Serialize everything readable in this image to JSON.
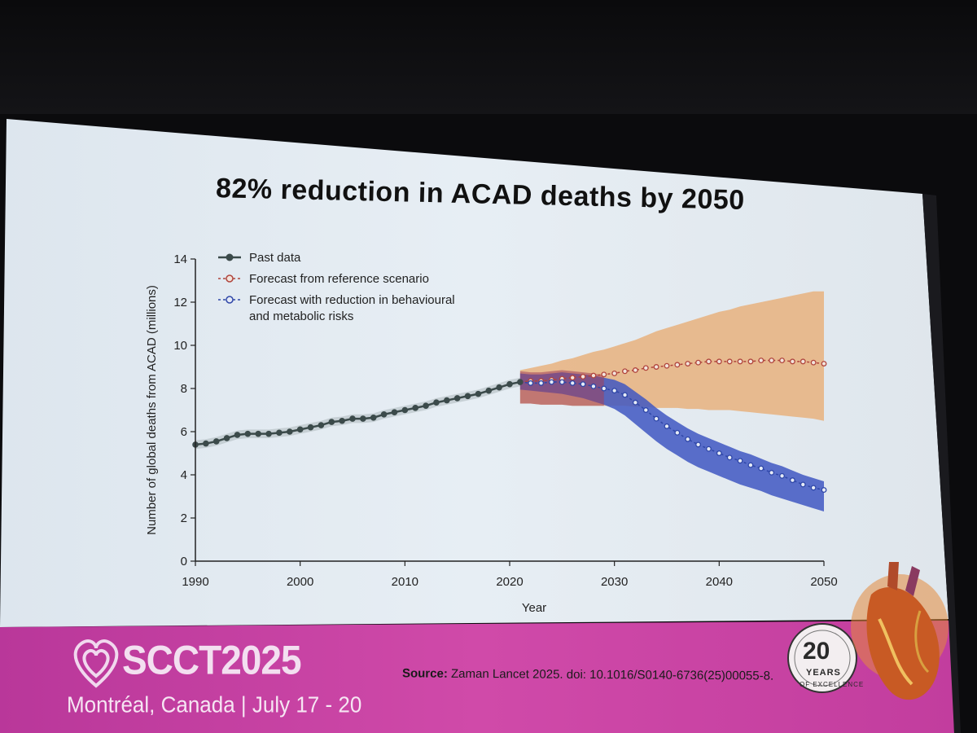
{
  "slide": {
    "title": "82% reduction in ACAD deaths by 2050",
    "source_label": "Source:",
    "source_text": "Zaman Lancet 2025. doi: 10.1016/S0140-6736(25)00055-8."
  },
  "banner": {
    "event": "SCCT2025",
    "location": "Montréal, Canada | July 17 - 20",
    "badge_number": "20",
    "badge_years": "YEARS",
    "badge_excellence": "OF EXCELLENCE"
  },
  "colors": {
    "past": "#3b4a4a",
    "reference": "#b0443c",
    "reduction": "#2f47a8",
    "reference_band": "#e8b27e",
    "reduction_band": "#3f57c2",
    "banner": "#c63aa0"
  },
  "chart_data": {
    "type": "line",
    "title": "",
    "xlabel": "Year",
    "ylabel": "Number of global deaths from ACAD (millions)",
    "xlim": [
      1990,
      2050
    ],
    "ylim": [
      0,
      14
    ],
    "x_ticks": [
      1990,
      2000,
      2010,
      2020,
      2030,
      2040,
      2050
    ],
    "y_ticks": [
      0,
      2,
      4,
      6,
      8,
      10,
      12,
      14
    ],
    "legend_position": "top-left",
    "grid": false,
    "series": [
      {
        "name": "Past data",
        "x": [
          1990,
          1991,
          1992,
          1993,
          1994,
          1995,
          1996,
          1997,
          1998,
          1999,
          2000,
          2001,
          2002,
          2003,
          2004,
          2005,
          2006,
          2007,
          2008,
          2009,
          2010,
          2011,
          2012,
          2013,
          2014,
          2015,
          2016,
          2017,
          2018,
          2019,
          2020,
          2021
        ],
        "y": [
          5.4,
          5.45,
          5.55,
          5.7,
          5.85,
          5.9,
          5.9,
          5.9,
          5.95,
          6.0,
          6.1,
          6.2,
          6.3,
          6.45,
          6.5,
          6.6,
          6.6,
          6.65,
          6.8,
          6.9,
          7.0,
          7.1,
          7.2,
          7.35,
          7.45,
          7.55,
          7.65,
          7.75,
          7.9,
          8.05,
          8.2,
          8.3
        ]
      },
      {
        "name": "Forecast from reference scenario",
        "x": [
          2021,
          2022,
          2023,
          2024,
          2025,
          2026,
          2027,
          2028,
          2029,
          2030,
          2031,
          2032,
          2033,
          2034,
          2035,
          2036,
          2037,
          2038,
          2039,
          2040,
          2041,
          2042,
          2043,
          2044,
          2045,
          2046,
          2047,
          2048,
          2049,
          2050
        ],
        "y": [
          8.3,
          8.35,
          8.35,
          8.4,
          8.45,
          8.5,
          8.55,
          8.6,
          8.65,
          8.7,
          8.8,
          8.85,
          8.95,
          9.0,
          9.05,
          9.1,
          9.15,
          9.2,
          9.25,
          9.25,
          9.25,
          9.25,
          9.25,
          9.3,
          9.3,
          9.3,
          9.25,
          9.25,
          9.2,
          9.15
        ],
        "lower": [
          7.3,
          7.3,
          7.25,
          7.25,
          7.25,
          7.2,
          7.2,
          7.2,
          7.2,
          7.2,
          7.2,
          7.15,
          7.15,
          7.1,
          7.1,
          7.1,
          7.05,
          7.05,
          7.0,
          7.0,
          7.0,
          6.95,
          6.9,
          6.85,
          6.8,
          6.75,
          6.7,
          6.65,
          6.6,
          6.5
        ],
        "upper": [
          8.85,
          8.95,
          9.05,
          9.15,
          9.3,
          9.4,
          9.55,
          9.7,
          9.8,
          9.95,
          10.1,
          10.25,
          10.45,
          10.65,
          10.8,
          10.95,
          11.1,
          11.25,
          11.4,
          11.55,
          11.65,
          11.8,
          11.9,
          12.0,
          12.1,
          12.2,
          12.3,
          12.4,
          12.5,
          12.5
        ]
      },
      {
        "name": "Forecast with reduction in behavioural and metabolic risks",
        "x": [
          2021,
          2022,
          2023,
          2024,
          2025,
          2026,
          2027,
          2028,
          2029,
          2030,
          2031,
          2032,
          2033,
          2034,
          2035,
          2036,
          2037,
          2038,
          2039,
          2040,
          2041,
          2042,
          2043,
          2044,
          2045,
          2046,
          2047,
          2048,
          2049,
          2050
        ],
        "y": [
          8.3,
          8.25,
          8.25,
          8.3,
          8.3,
          8.25,
          8.2,
          8.1,
          8.0,
          7.9,
          7.7,
          7.35,
          7.0,
          6.6,
          6.25,
          5.95,
          5.65,
          5.4,
          5.2,
          5.0,
          4.8,
          4.65,
          4.45,
          4.3,
          4.1,
          3.95,
          3.75,
          3.55,
          3.4,
          3.3
        ],
        "lower": [
          7.95,
          7.9,
          7.85,
          7.8,
          7.75,
          7.65,
          7.55,
          7.4,
          7.25,
          7.05,
          6.75,
          6.35,
          5.95,
          5.55,
          5.2,
          4.9,
          4.6,
          4.35,
          4.15,
          3.95,
          3.75,
          3.55,
          3.4,
          3.25,
          3.05,
          2.9,
          2.75,
          2.6,
          2.45,
          2.3
        ],
        "upper": [
          8.7,
          8.65,
          8.65,
          8.7,
          8.75,
          8.7,
          8.65,
          8.6,
          8.5,
          8.4,
          8.2,
          7.85,
          7.5,
          7.1,
          6.75,
          6.45,
          6.15,
          5.9,
          5.7,
          5.5,
          5.3,
          5.1,
          4.95,
          4.75,
          4.55,
          4.4,
          4.2,
          4.0,
          3.85,
          3.7
        ]
      }
    ]
  }
}
